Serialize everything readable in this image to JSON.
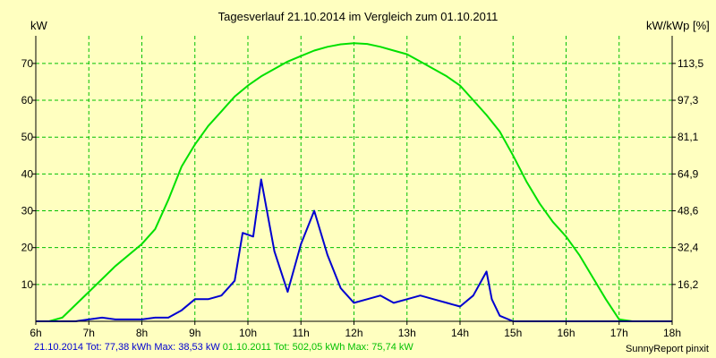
{
  "chart_data": {
    "type": "line",
    "title": "Tagesverlauf 21.10.2014 im Vergleich zum 01.10.2011",
    "ylabel_left": "kW",
    "ylabel_right": "kW/kWp [%]",
    "xlim": [
      6,
      18
    ],
    "ylim": [
      0,
      77.5
    ],
    "x_ticks": [
      6,
      7,
      8,
      9,
      10,
      11,
      12,
      13,
      14,
      15,
      16,
      17,
      18
    ],
    "x_tick_labels": [
      "6h",
      "7h",
      "8h",
      "9h",
      "10h",
      "11h",
      "12h",
      "13h",
      "14h",
      "15h",
      "16h",
      "17h",
      "18h"
    ],
    "y_ticks": [
      10,
      20,
      30,
      40,
      50,
      60,
      70
    ],
    "y_tick_labels": [
      "10",
      "20",
      "30",
      "40",
      "50",
      "60",
      "70"
    ],
    "y2_tick_labels": [
      "16,2",
      "32,4",
      "48,6",
      "64,9",
      "81,1",
      "97,3",
      "113,5"
    ],
    "grid": true,
    "series": [
      {
        "name": "01.10.2011",
        "color": "#00e000",
        "x": [
          6.0,
          6.25,
          6.5,
          7.0,
          7.5,
          8.0,
          8.25,
          8.5,
          8.75,
          9.0,
          9.25,
          9.5,
          9.75,
          10.0,
          10.25,
          10.5,
          10.75,
          11.0,
          11.25,
          11.5,
          11.75,
          12.0,
          12.25,
          12.5,
          12.75,
          13.0,
          13.25,
          13.5,
          13.75,
          14.0,
          14.25,
          14.5,
          14.75,
          15.0,
          15.25,
          15.5,
          15.75,
          16.0,
          16.25,
          16.5,
          16.75,
          17.0,
          17.25,
          17.5,
          17.75,
          18.0
        ],
        "values": [
          0,
          0,
          1,
          8,
          15,
          21,
          25,
          33,
          42,
          48,
          53,
          57,
          61,
          64,
          66.5,
          68.5,
          70.5,
          72,
          73.5,
          74.5,
          75.2,
          75.5,
          75.3,
          74.5,
          73.5,
          72.5,
          70.5,
          68.5,
          66.5,
          64,
          60,
          56,
          51.5,
          45,
          38,
          32,
          27,
          23,
          18,
          12,
          6,
          0.5,
          0,
          0,
          0,
          0
        ]
      },
      {
        "name": "21.10.2014",
        "color": "#0000d0",
        "x": [
          6.0,
          6.5,
          6.75,
          7.0,
          7.25,
          7.5,
          7.75,
          8.0,
          8.25,
          8.5,
          8.75,
          9.0,
          9.25,
          9.5,
          9.75,
          9.9,
          10.1,
          10.25,
          10.5,
          10.75,
          11.0,
          11.25,
          11.5,
          11.75,
          12.0,
          12.25,
          12.5,
          12.75,
          13.0,
          13.25,
          13.5,
          13.75,
          14.0,
          14.25,
          14.5,
          14.6,
          14.75,
          15.0,
          15.25,
          15.5,
          15.75,
          16.0,
          16.25,
          16.5,
          16.75,
          17.0,
          17.25,
          17.5,
          17.75,
          18.0
        ],
        "values": [
          0,
          0,
          0,
          0.5,
          1,
          0.5,
          0.5,
          0.5,
          1,
          1,
          3,
          6,
          6,
          7,
          11,
          24,
          23,
          38.5,
          19,
          8,
          21,
          30,
          18,
          9,
          5,
          6,
          7,
          5,
          6,
          7,
          6,
          5,
          4,
          7,
          13.5,
          6,
          1.5,
          0,
          0,
          0,
          0,
          0,
          0,
          0,
          0,
          0,
          0,
          0,
          0,
          0
        ]
      }
    ],
    "legend": [
      {
        "label": "21.10.2014 Tot: 77,38 kWh Max: 38,53 kW",
        "color": "#0000d0"
      },
      {
        "label": "01.10.2011 Tot: 502,05 kWh Max: 75,74 kW",
        "color": "#00e000"
      }
    ],
    "credit": "SunnyReport pinxit"
  }
}
